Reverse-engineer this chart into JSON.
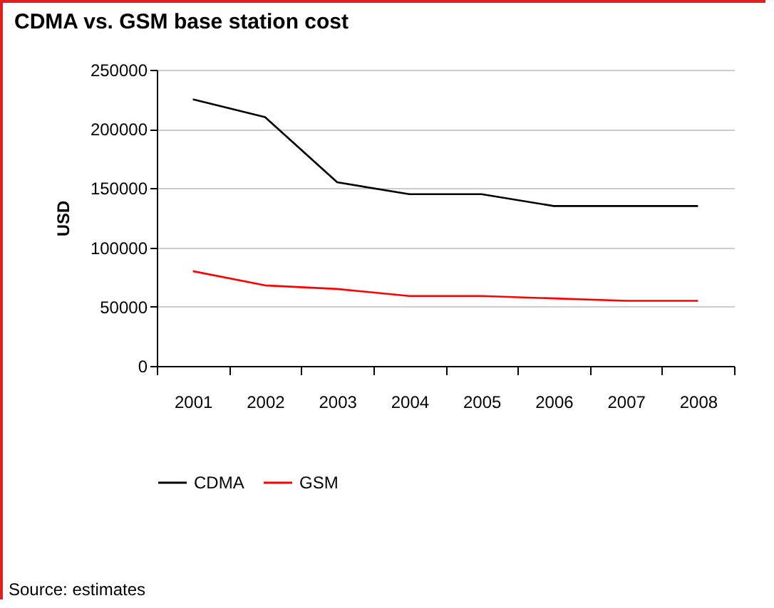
{
  "chart_data": {
    "type": "line",
    "title": "CDMA vs. GSM base station cost",
    "ylabel": "USD",
    "categories": [
      "2001",
      "2002",
      "2003",
      "2004",
      "2005",
      "2006",
      "2007",
      "2008"
    ],
    "series": [
      {
        "name": "CDMA",
        "color": "#000000",
        "values": [
          225000,
          210000,
          155000,
          145000,
          145000,
          135000,
          135000,
          135000
        ]
      },
      {
        "name": "GSM",
        "color": "#ff0000",
        "values": [
          80000,
          68000,
          65000,
          59000,
          59000,
          57000,
          55000,
          55000
        ]
      }
    ],
    "ylim": [
      0,
      250000
    ],
    "yticks": [
      0,
      50000,
      100000,
      150000,
      200000,
      250000
    ],
    "grid": "y",
    "legend": "bottom",
    "annotations": [
      "Source: estimates"
    ]
  }
}
